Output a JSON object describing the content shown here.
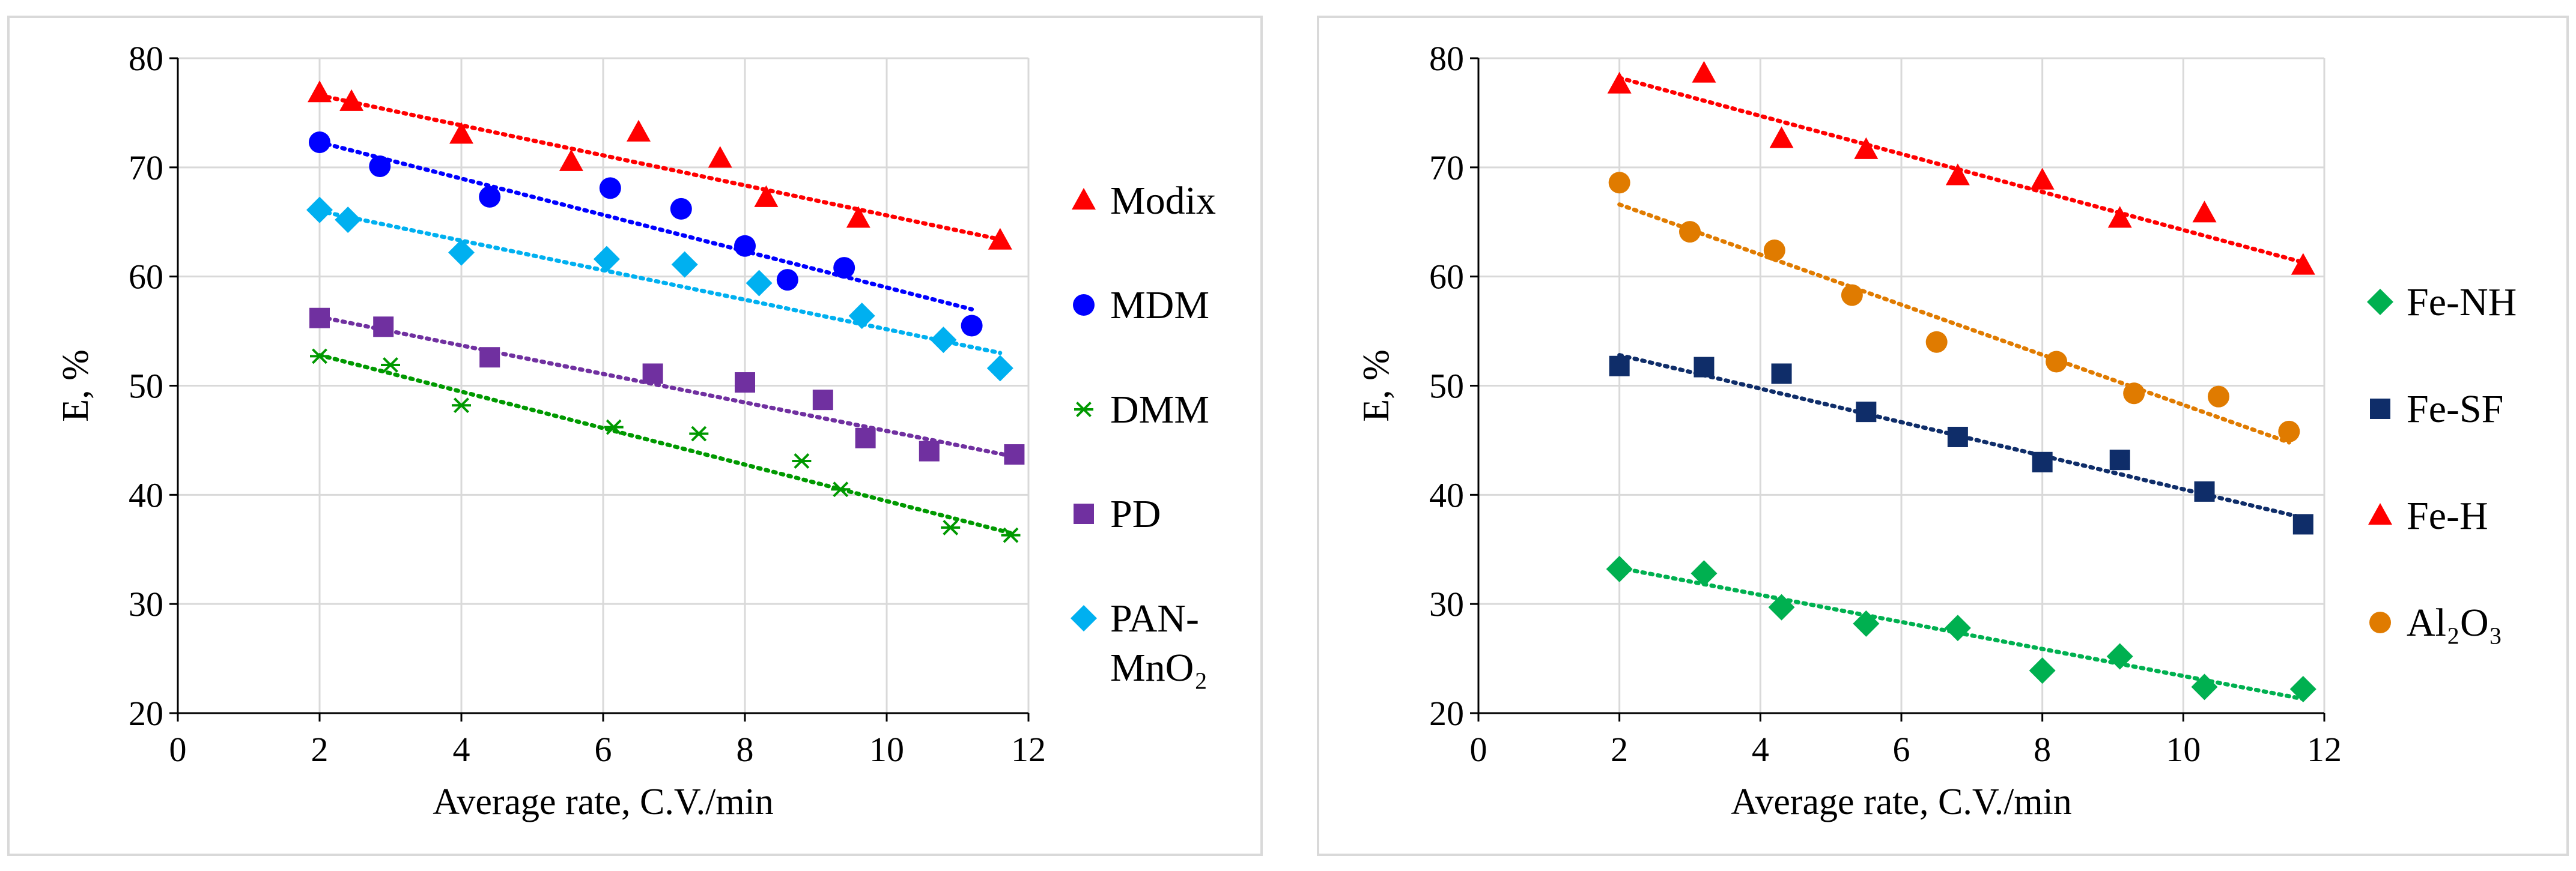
{
  "chart_data": [
    {
      "type": "scatter",
      "xlabel": "Average rate, C.V./min",
      "ylabel": "E, %",
      "xlim": [
        0,
        12
      ],
      "ylim": [
        20,
        80
      ],
      "xticks": [
        "0",
        "2",
        "4",
        "6",
        "8",
        "10",
        "12"
      ],
      "yticks": [
        "20",
        "30",
        "40",
        "50",
        "60",
        "70",
        "80"
      ],
      "grid": true,
      "legend_position": "right",
      "trendlines": "dotted linear",
      "series": [
        {
          "name": "Modix",
          "marker": "triangle",
          "color": "#ff0000",
          "x": [
            2.0,
            2.45,
            4.0,
            5.55,
            6.5,
            7.65,
            8.3,
            9.6,
            11.6
          ],
          "y": [
            76.8,
            76.0,
            73.0,
            70.5,
            73.2,
            70.8,
            67.2,
            65.3,
            63.3
          ],
          "trend": {
            "x": [
              2.0,
              11.6
            ],
            "y": [
              76.6,
              63.4
            ]
          }
        },
        {
          "name": "MDM",
          "marker": "circle",
          "color": "#0000ff",
          "x": [
            2.0,
            2.85,
            4.4,
            6.1,
            7.1,
            8.0,
            8.6,
            9.4,
            11.2
          ],
          "y": [
            72.3,
            70.1,
            67.3,
            68.1,
            66.2,
            62.8,
            59.7,
            60.8,
            55.5
          ],
          "trend": {
            "x": [
              2.0,
              11.2
            ],
            "y": [
              72.3,
              57.0
            ]
          }
        },
        {
          "name": "DMM",
          "marker": "star",
          "color": "#009900",
          "x": [
            2.0,
            3.0,
            4.0,
            6.15,
            7.35,
            8.8,
            9.35,
            10.9,
            11.75
          ],
          "y": [
            52.7,
            51.9,
            48.2,
            46.2,
            45.6,
            43.1,
            40.5,
            37.0,
            36.3
          ],
          "trend": {
            "x": [
              2.0,
              11.75
            ],
            "y": [
              52.8,
              36.5
            ]
          }
        },
        {
          "name": "PD",
          "marker": "square",
          "color": "#7030a0",
          "x": [
            2.0,
            2.9,
            4.4,
            6.7,
            8.0,
            9.1,
            9.7,
            10.6,
            11.8
          ],
          "y": [
            56.2,
            55.4,
            52.6,
            51.1,
            50.3,
            48.7,
            45.2,
            44.0,
            43.7
          ],
          "trend": {
            "x": [
              2.0,
              11.8
            ],
            "y": [
              56.3,
              43.5
            ]
          }
        },
        {
          "name": "PAN-MnO2",
          "legend_lines": [
            "PAN-",
            "MnO₂"
          ],
          "marker": "diamond",
          "color": "#00b0f0",
          "x": [
            2.0,
            2.4,
            4.0,
            6.05,
            7.15,
            8.2,
            9.65,
            10.8,
            11.6
          ],
          "y": [
            66.1,
            65.2,
            62.2,
            61.6,
            61.1,
            59.4,
            56.4,
            54.2,
            51.6
          ],
          "trend": {
            "x": [
              2.0,
              11.6
            ],
            "y": [
              66.0,
              53.0
            ]
          }
        }
      ]
    },
    {
      "type": "scatter",
      "xlabel": "Average rate, C.V./min",
      "ylabel": "E, %",
      "xlim": [
        0,
        12
      ],
      "ylim": [
        20,
        80
      ],
      "xticks": [
        "0",
        "2",
        "4",
        "6",
        "8",
        "10",
        "12"
      ],
      "yticks": [
        "20",
        "30",
        "40",
        "50",
        "60",
        "70",
        "80"
      ],
      "grid": true,
      "legend_position": "right",
      "trendlines": "dotted linear",
      "series": [
        {
          "name": "Fe-NH",
          "marker": "diamond",
          "color": "#00b050",
          "x": [
            2.0,
            3.2,
            4.3,
            5.5,
            6.8,
            8.0,
            9.1,
            10.3,
            11.7
          ],
          "y": [
            33.2,
            32.8,
            29.7,
            28.2,
            27.8,
            23.9,
            25.2,
            22.4,
            22.2
          ],
          "trend": {
            "x": [
              2.0,
              11.7
            ],
            "y": [
              33.3,
              21.3
            ]
          }
        },
        {
          "name": "Fe-SF",
          "marker": "square",
          "color": "#0f2d69",
          "x": [
            2.0,
            3.2,
            4.3,
            5.5,
            6.8,
            8.0,
            9.1,
            10.3,
            11.7
          ],
          "y": [
            51.8,
            51.7,
            51.1,
            47.6,
            45.3,
            43.0,
            43.2,
            40.3,
            37.3
          ],
          "trend": {
            "x": [
              2.0,
              11.7
            ],
            "y": [
              52.8,
              37.9
            ]
          }
        },
        {
          "name": "Fe-H",
          "marker": "triangle",
          "color": "#ff0000",
          "x": [
            2.0,
            3.2,
            4.3,
            5.5,
            6.8,
            8.0,
            9.1,
            10.3,
            11.7
          ],
          "y": [
            77.6,
            78.6,
            72.6,
            71.6,
            69.2,
            68.8,
            65.3,
            65.8,
            61.0
          ],
          "trend": {
            "x": [
              2.0,
              11.7
            ],
            "y": [
              78.2,
              61.3
            ]
          }
        },
        {
          "name": "Al2O3",
          "legend_lines": [
            "Al₂O₃"
          ],
          "marker": "circle",
          "color": "#e07b00",
          "x": [
            2.0,
            3.0,
            4.2,
            5.3,
            6.5,
            8.2,
            9.3,
            10.5,
            11.5
          ],
          "y": [
            68.6,
            64.1,
            62.4,
            58.3,
            54.0,
            52.2,
            49.3,
            49.0,
            45.8
          ],
          "trend": {
            "x": [
              2.0,
              11.5
            ],
            "y": [
              66.6,
              44.8
            ]
          }
        }
      ]
    }
  ]
}
